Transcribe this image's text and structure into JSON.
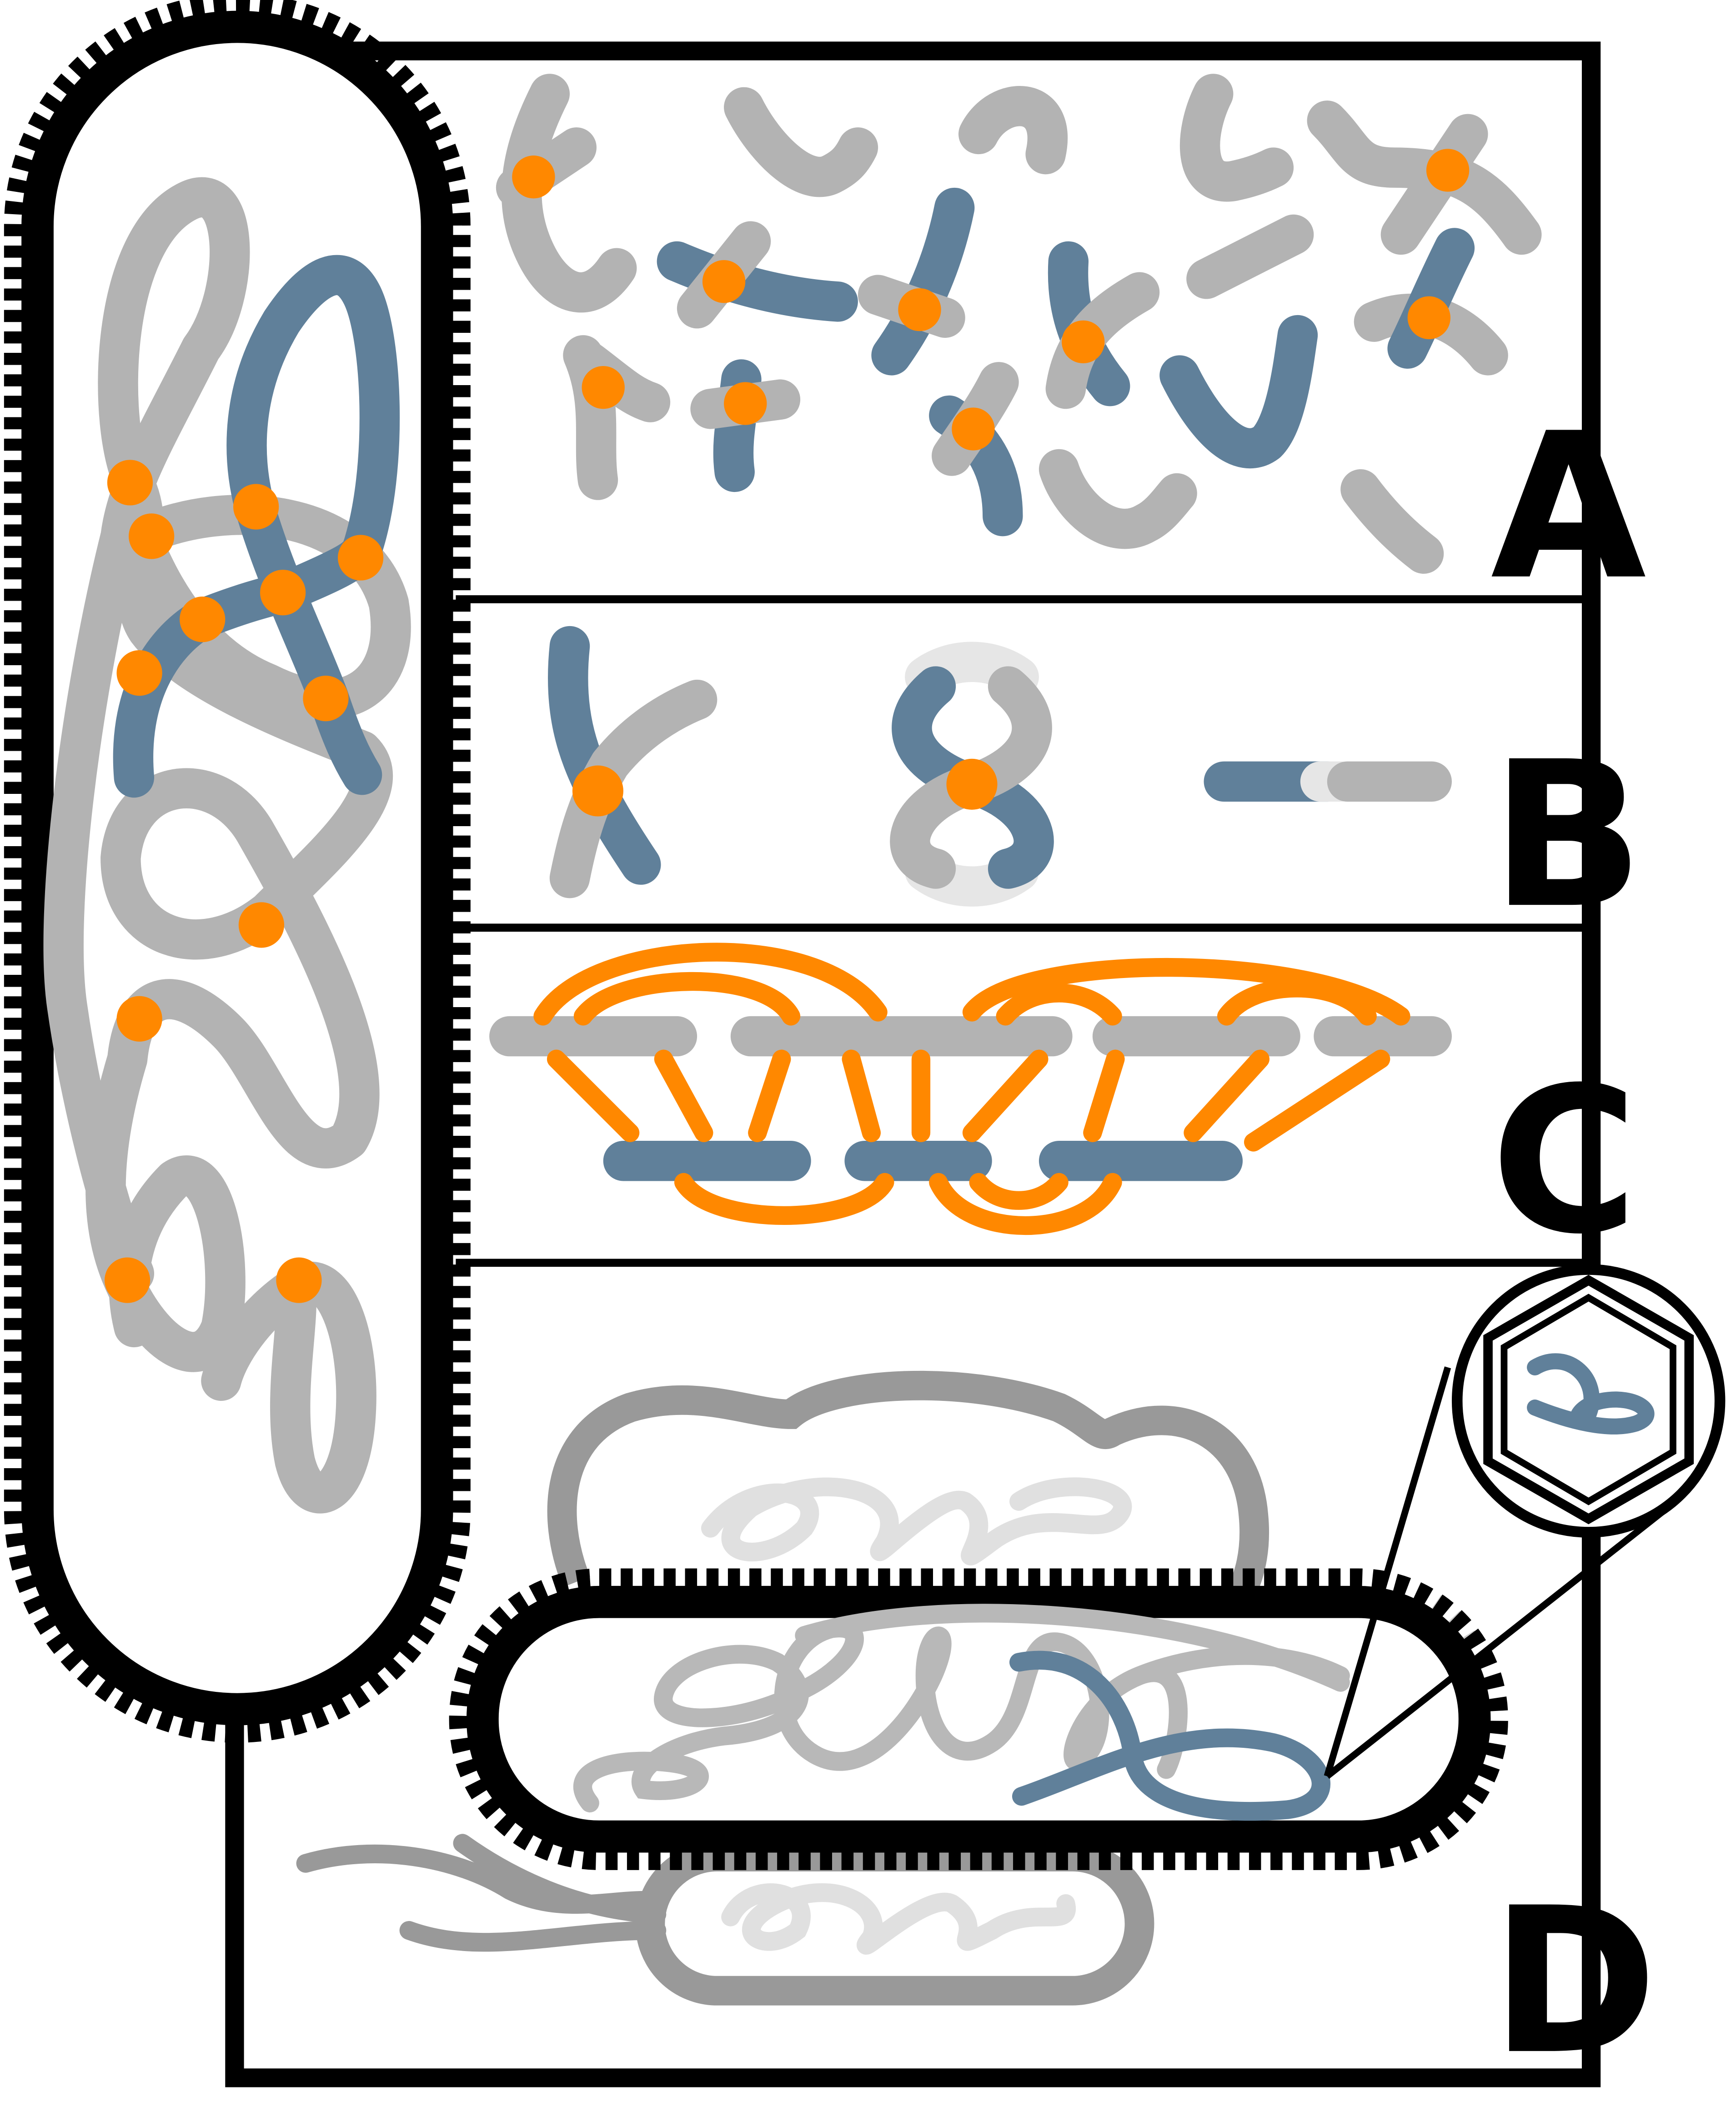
{
  "panels": [
    {
      "label": "A"
    },
    {
      "label": "B"
    },
    {
      "label": "C"
    },
    {
      "label": "D"
    }
  ],
  "colors": {
    "host_dna": "#b3b3b3",
    "foreign_dna": "#60809a",
    "junction": "#ff8800",
    "outline": "#000000",
    "faded": "#e6e6e6"
  },
  "icons": [
    "bacterium-cell",
    "bacteriophage-capsid",
    "dna-strand",
    "junction-dot"
  ]
}
